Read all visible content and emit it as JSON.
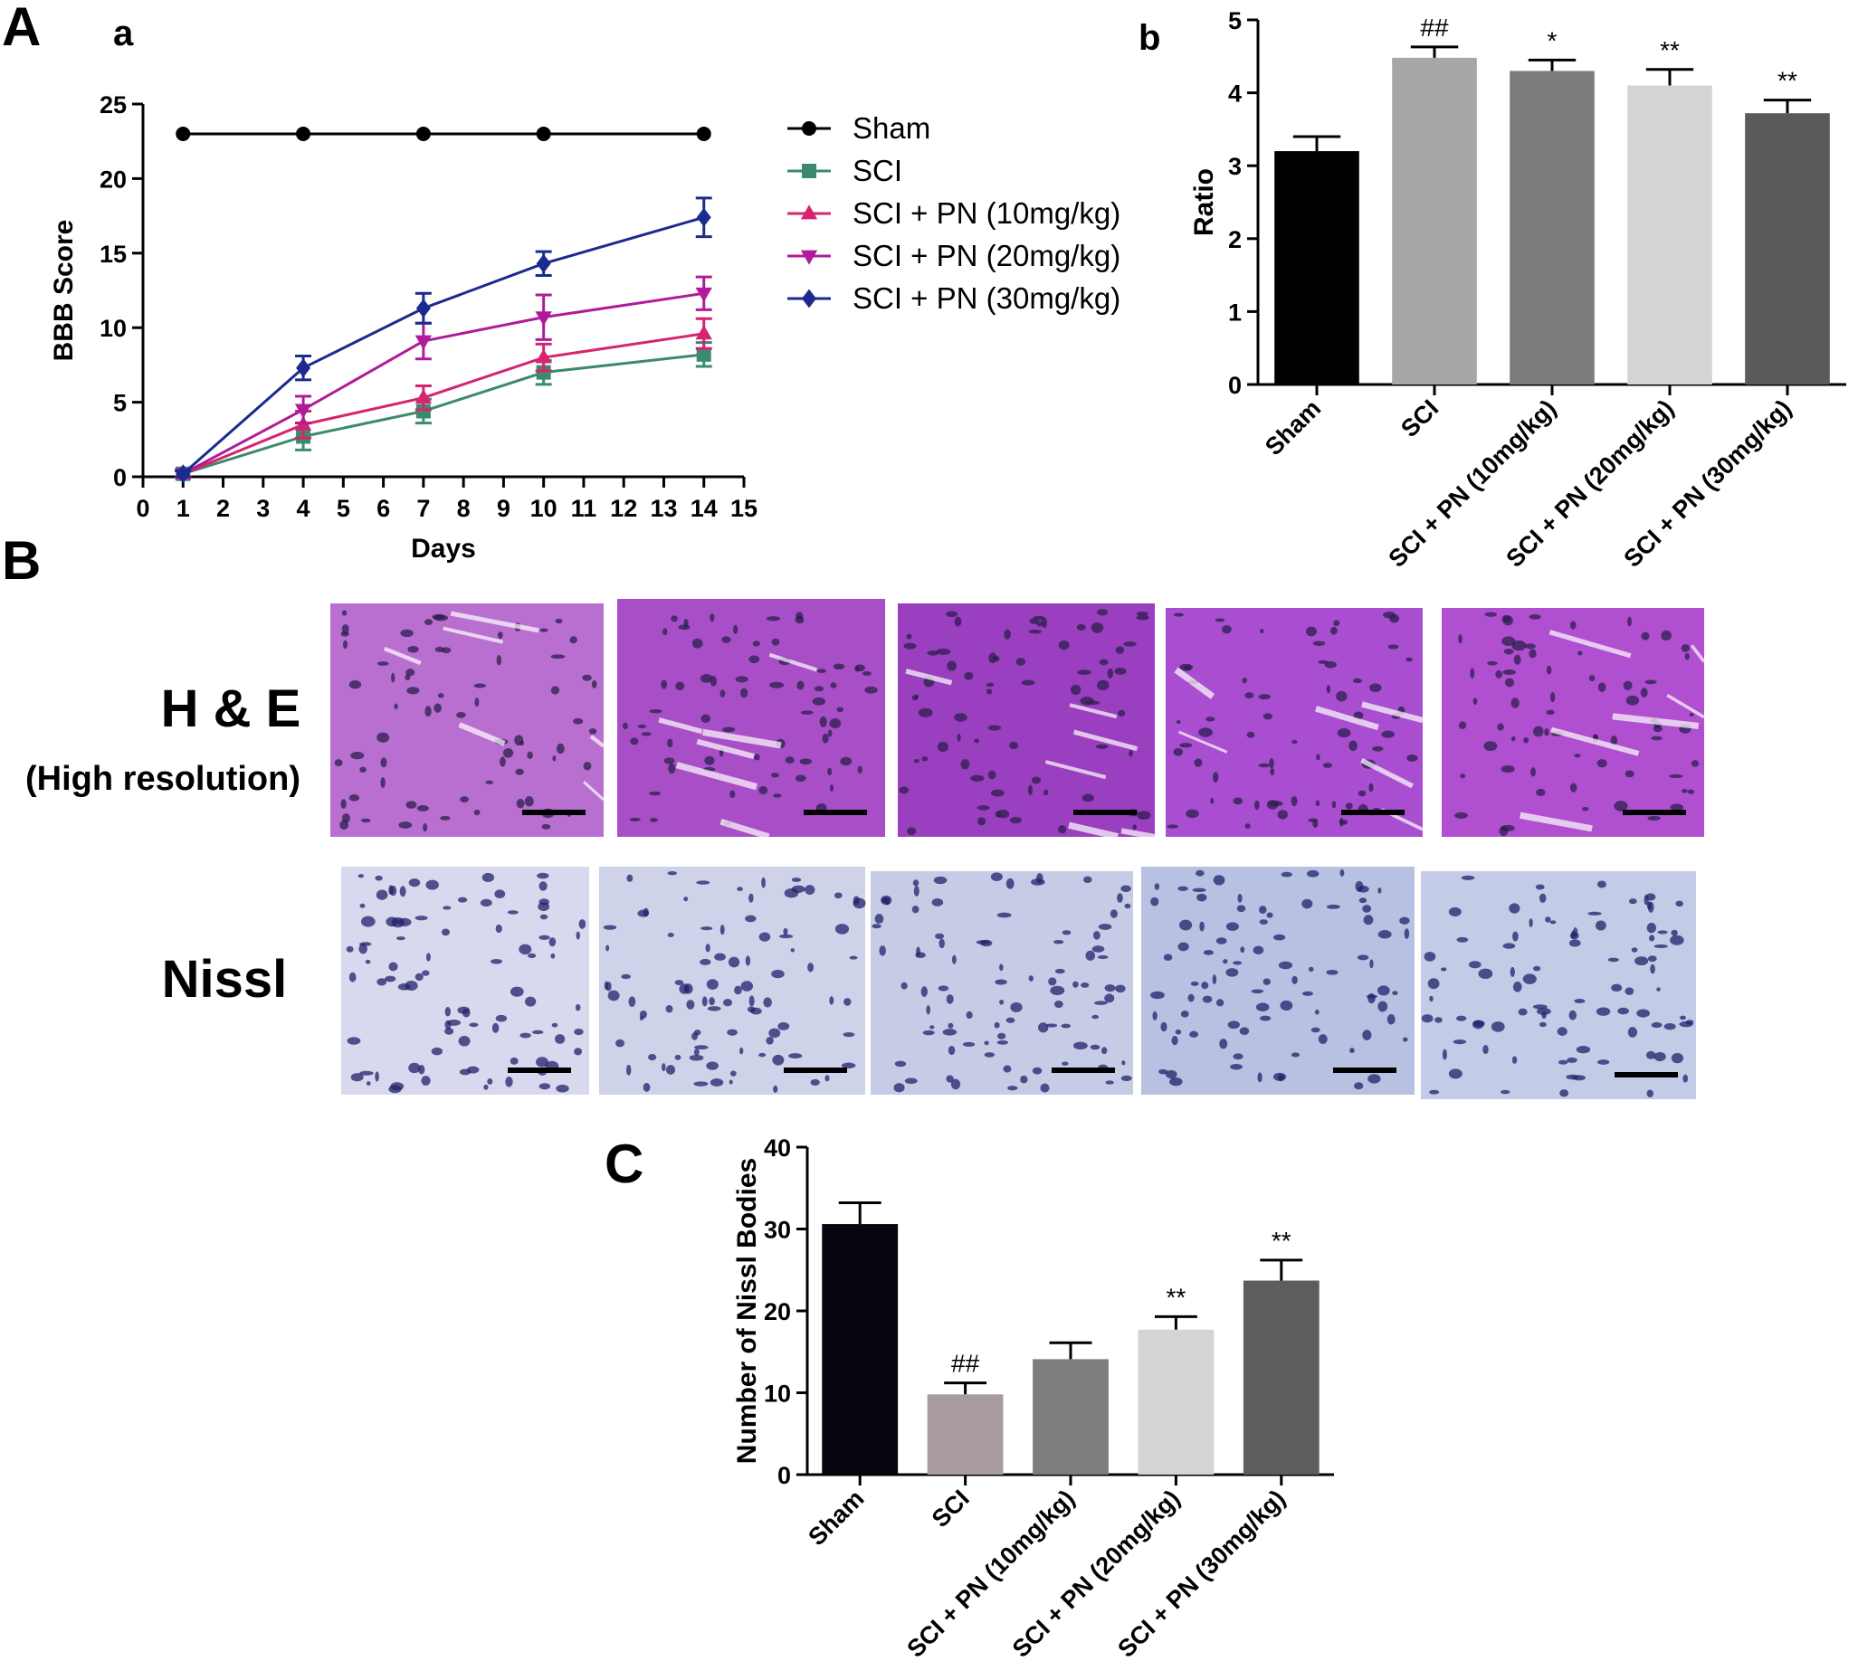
{
  "panels": {
    "A": "A",
    "a": "a",
    "b": "b",
    "B": "B",
    "C": "C"
  },
  "histology": {
    "he_label": "H & E",
    "he_sublabel": "(High resolution)",
    "nissl_label": "Nissl",
    "he_colors": [
      "#b96fd0",
      "#a84fc7",
      "#9a3fbf",
      "#a94ed0",
      "#b04fcf"
    ],
    "nissl_colors": [
      "#d8d8ee",
      "#cfd3ea",
      "#c6cbe6",
      "#b9c1e2",
      "#c3cbe7"
    ],
    "he_dot_color": "#2b1f4d",
    "nissl_dot_color": "#22226b"
  },
  "chart_data": [
    {
      "id": "bbb",
      "type": "line",
      "title": "",
      "xlabel": "Days",
      "ylabel": "BBB Score",
      "xlim": [
        0,
        15
      ],
      "ylim": [
        0,
        25
      ],
      "x_ticks": [
        0,
        1,
        2,
        3,
        4,
        5,
        6,
        7,
        8,
        9,
        10,
        11,
        12,
        13,
        14,
        15
      ],
      "y_ticks": [
        0,
        5,
        10,
        15,
        20,
        25
      ],
      "x": [
        1,
        4,
        7,
        10,
        14
      ],
      "legend_position": "right",
      "series": [
        {
          "name": "Sham",
          "color": "#000000",
          "marker": "circle",
          "values": [
            23,
            23,
            23,
            23,
            23
          ],
          "errors": [
            0,
            0,
            0,
            0,
            0
          ]
        },
        {
          "name": "SCI",
          "color": "#3c8a6e",
          "marker": "square",
          "values": [
            0.2,
            2.7,
            4.4,
            7.0,
            8.2
          ],
          "errors": [
            0.2,
            0.9,
            0.8,
            0.8,
            0.8
          ]
        },
        {
          "name": "SCI + PN (10mg/kg)",
          "color": "#d6246e",
          "marker": "triangle-up",
          "values": [
            0.2,
            3.5,
            5.3,
            8.0,
            9.6
          ],
          "errors": [
            0.2,
            0.9,
            0.8,
            0.9,
            1.0
          ]
        },
        {
          "name": "SCI + PN (20mg/kg)",
          "color": "#b01b9a",
          "marker": "triangle-down",
          "values": [
            0.2,
            4.5,
            9.1,
            10.7,
            12.3
          ],
          "errors": [
            0.2,
            0.9,
            1.2,
            1.5,
            1.1
          ]
        },
        {
          "name": "SCI + PN (30mg/kg)",
          "color": "#1c2a8f",
          "marker": "diamond",
          "values": [
            0.2,
            7.3,
            11.3,
            14.3,
            17.4
          ],
          "errors": [
            0.2,
            0.8,
            1.0,
            0.8,
            1.3
          ]
        }
      ]
    },
    {
      "id": "ratio",
      "type": "bar",
      "title": "",
      "xlabel": "",
      "ylabel": "Ratio",
      "ylim": [
        0,
        5
      ],
      "y_ticks": [
        0,
        1,
        2,
        3,
        4,
        5
      ],
      "categories": [
        "Sham",
        "SCI",
        "SCI + PN (10mg/kg)",
        "SCI + PN (20mg/kg)",
        "SCI + PN (30mg/kg)"
      ],
      "values": [
        3.2,
        4.48,
        4.3,
        4.1,
        3.72
      ],
      "errors": [
        0.2,
        0.15,
        0.15,
        0.22,
        0.18
      ],
      "annotations": [
        "",
        "##",
        "*",
        "**",
        "**"
      ],
      "colors": [
        "#000000",
        "#a6a6a8",
        "#7b7b7d",
        "#d4d4d4",
        "#5a5a5c"
      ]
    },
    {
      "id": "nissl",
      "type": "bar",
      "title": "",
      "xlabel": "",
      "ylabel": "Number of Nissl Bodies",
      "ylim": [
        0,
        40
      ],
      "y_ticks": [
        0,
        10,
        20,
        30,
        40
      ],
      "categories": [
        "Sham",
        "SCI",
        "SCI + PN (10mg/kg)",
        "SCI + PN (20mg/kg)",
        "SCI + PN (30mg/kg)"
      ],
      "values": [
        30.6,
        9.8,
        14.1,
        17.7,
        23.7
      ],
      "errors": [
        2.6,
        1.4,
        2.0,
        1.6,
        2.5
      ],
      "annotations": [
        "",
        "##",
        "",
        "**",
        "**"
      ],
      "colors": [
        "#050510",
        "#a89ca0",
        "#7d7d7f",
        "#d4d4d6",
        "#5d5d5f"
      ]
    }
  ]
}
